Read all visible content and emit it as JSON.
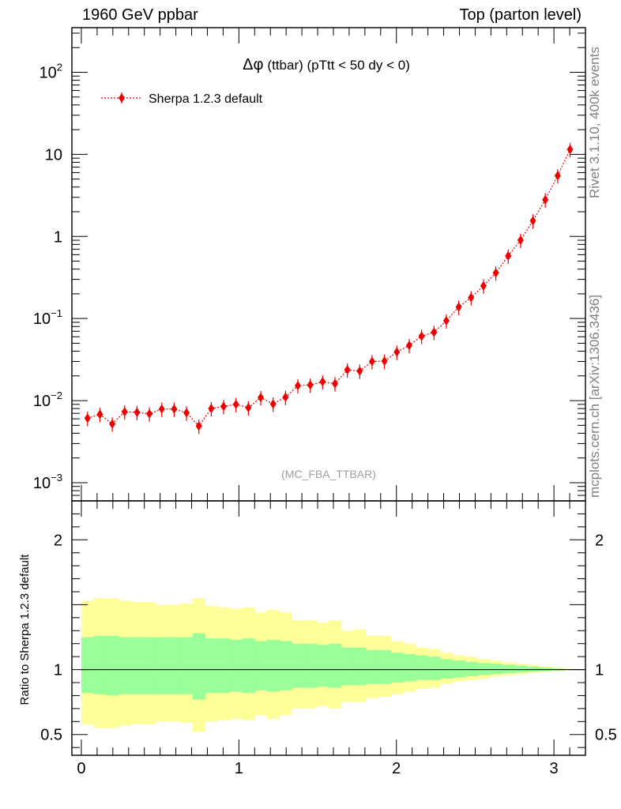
{
  "header": {
    "left": "1960 GeV ppbar",
    "right": "Top (parton level)"
  },
  "side_labels": {
    "rivet": "Rivet 3.1.10,  400k events",
    "mcplots": "mcplots.cern.ch [arXiv:1306.3436]"
  },
  "colors": {
    "series": "#ee0000",
    "band_inner": "#99ff99",
    "band_outer": "#ffff99",
    "axis": "#000000",
    "watermark": "#a0a0a0"
  },
  "chart_data": [
    {
      "type": "line",
      "role": "main",
      "title_prefix": "Δφ",
      "title": "(ttbar) (pTtt < 50 dy < 0)",
      "watermark": "(MC_FBA_TTBAR)",
      "xlim": [
        -0.06,
        3.2
      ],
      "ylim": [
        0.0006,
        350
      ],
      "yscale": "log",
      "yticks": [
        {
          "v": 0.001,
          "b": "10",
          "e": "−3"
        },
        {
          "v": 0.01,
          "b": "10",
          "e": "−2"
        },
        {
          "v": 0.1,
          "b": "10",
          "e": "−1"
        },
        {
          "v": 1,
          "b": "1",
          "e": ""
        },
        {
          "v": 10,
          "b": "10",
          "e": ""
        },
        {
          "v": 100,
          "b": "10",
          "e": "2"
        }
      ],
      "legend": {
        "position": "top-left"
      },
      "series": [
        {
          "name": "Sherpa 1.2.3 default",
          "x": [
            0.0393,
            0.1178,
            0.1963,
            0.2749,
            0.3534,
            0.432,
            0.5105,
            0.589,
            0.6676,
            0.7461,
            0.8247,
            0.9032,
            0.9817,
            1.0603,
            1.1388,
            1.2174,
            1.2959,
            1.3744,
            1.453,
            1.5315,
            1.6101,
            1.6886,
            1.7671,
            1.8457,
            1.9242,
            2.0028,
            2.0813,
            2.1598,
            2.2384,
            2.3169,
            2.3955,
            2.474,
            2.5525,
            2.6311,
            2.7096,
            2.7882,
            2.8667,
            2.9452,
            3.0238,
            3.1023
          ],
          "y": [
            0.0061,
            0.0068,
            0.0052,
            0.0073,
            0.0072,
            0.0069,
            0.0079,
            0.0079,
            0.0071,
            0.0049,
            0.008,
            0.0085,
            0.009,
            0.0082,
            0.0109,
            0.0091,
            0.011,
            0.0152,
            0.0155,
            0.017,
            0.0161,
            0.0237,
            0.0229,
            0.03,
            0.0303,
            0.039,
            0.047,
            0.061,
            0.068,
            0.094,
            0.138,
            0.18,
            0.25,
            0.36,
            0.58,
            0.9,
            1.55,
            2.8,
            5.5,
            11.5
          ],
          "yerr_rel": 0.2,
          "marker": "diamond",
          "linestyle": "dotted"
        }
      ]
    },
    {
      "type": "area",
      "role": "ratio",
      "ylabel": "Ratio to Sherpa 1.2.3 default",
      "xlim": [
        -0.06,
        3.2
      ],
      "ylim": [
        0.34,
        2.3
      ],
      "xticks": [
        0,
        1,
        2,
        3
      ],
      "yticks": [
        0.5,
        1,
        2
      ],
      "bin_edges": [
        0.0,
        0.0785,
        0.157,
        0.2356,
        0.3142,
        0.3927,
        0.4712,
        0.5498,
        0.6283,
        0.7069,
        0.7854,
        0.8639,
        0.9425,
        1.021,
        1.0996,
        1.1781,
        1.2566,
        1.3352,
        1.4137,
        1.4923,
        1.5708,
        1.6493,
        1.7279,
        1.8064,
        1.885,
        1.9635,
        2.042,
        2.1206,
        2.1991,
        2.2777,
        2.3562,
        2.4347,
        2.5133,
        2.5918,
        2.6704,
        2.7489,
        2.8274,
        2.906,
        2.9845,
        3.0631,
        3.1416
      ],
      "series": [
        {
          "name": "inner",
          "lo": [
            0.82,
            0.81,
            0.8,
            0.81,
            0.81,
            0.81,
            0.81,
            0.81,
            0.81,
            0.77,
            0.82,
            0.82,
            0.83,
            0.82,
            0.84,
            0.83,
            0.84,
            0.86,
            0.86,
            0.87,
            0.86,
            0.88,
            0.88,
            0.89,
            0.89,
            0.9,
            0.91,
            0.92,
            0.92,
            0.93,
            0.94,
            0.95,
            0.96,
            0.965,
            0.972,
            0.978,
            0.983,
            0.988,
            0.993,
            0.997
          ],
          "hi": [
            1.25,
            1.26,
            1.26,
            1.25,
            1.25,
            1.25,
            1.25,
            1.25,
            1.25,
            1.28,
            1.24,
            1.24,
            1.23,
            1.24,
            1.22,
            1.23,
            1.22,
            1.2,
            1.2,
            1.19,
            1.2,
            1.17,
            1.17,
            1.15,
            1.15,
            1.13,
            1.12,
            1.11,
            1.1,
            1.08,
            1.07,
            1.06,
            1.05,
            1.045,
            1.038,
            1.03,
            1.022,
            1.015,
            1.008,
            1.003
          ]
        },
        {
          "name": "outer",
          "lo": [
            0.58,
            0.55,
            0.55,
            0.57,
            0.58,
            0.58,
            0.6,
            0.6,
            0.59,
            0.52,
            0.6,
            0.61,
            0.62,
            0.61,
            0.65,
            0.62,
            0.65,
            0.7,
            0.7,
            0.72,
            0.7,
            0.75,
            0.75,
            0.78,
            0.79,
            0.81,
            0.83,
            0.85,
            0.86,
            0.89,
            0.91,
            0.92,
            0.93,
            0.945,
            0.955,
            0.965,
            0.975,
            0.982,
            0.99,
            0.996
          ],
          "hi": [
            1.53,
            1.55,
            1.55,
            1.53,
            1.52,
            1.52,
            1.5,
            1.5,
            1.51,
            1.55,
            1.49,
            1.48,
            1.47,
            1.48,
            1.44,
            1.46,
            1.44,
            1.38,
            1.38,
            1.36,
            1.38,
            1.3,
            1.31,
            1.26,
            1.26,
            1.22,
            1.2,
            1.17,
            1.16,
            1.13,
            1.11,
            1.1,
            1.08,
            1.07,
            1.055,
            1.045,
            1.035,
            1.025,
            1.015,
            1.006
          ]
        }
      ],
      "reference_line": 1
    }
  ]
}
